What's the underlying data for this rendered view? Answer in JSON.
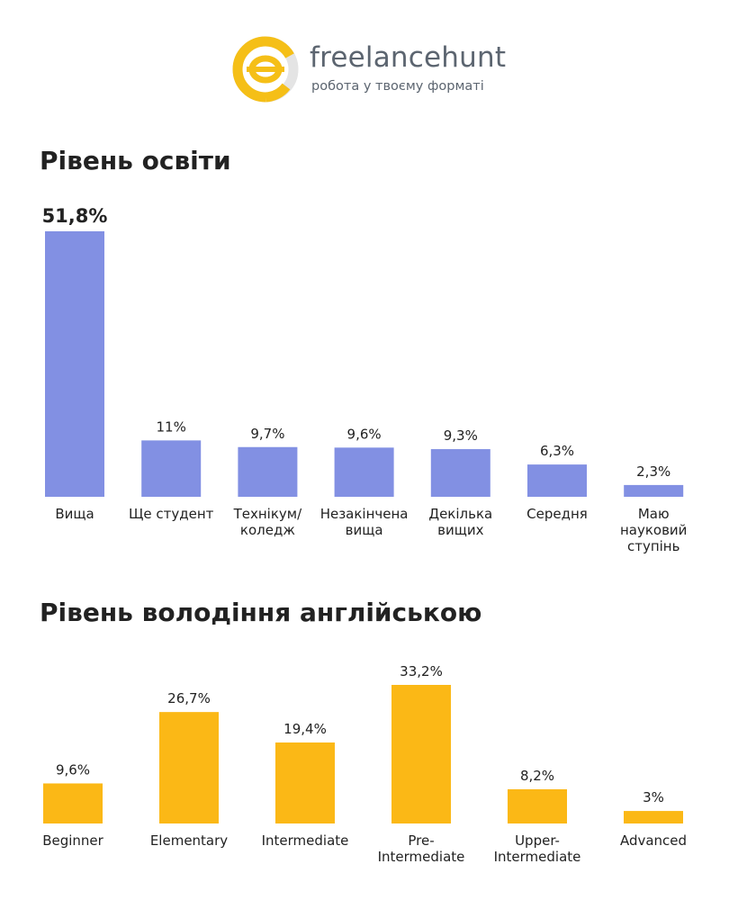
{
  "brand": {
    "name": "freelancehunt",
    "tagline": "робота у твоєму форматі",
    "colors": {
      "yellow": "#f5bf17",
      "gray": "#e4e4e4",
      "text": "#5c6570"
    }
  },
  "sections": {
    "education_title": "Рівень освіти",
    "english_title": "Рівень володіння англійською"
  },
  "chart_data": [
    {
      "type": "bar",
      "title": "Рівень освіти",
      "categories": [
        "Вища",
        "Ще студент",
        "Технікум/ коледж",
        "Незакінчена вища",
        "Декілька вищих",
        "Середня",
        "Маю науковий ступінь"
      ],
      "category_lines": [
        [
          "Вища"
        ],
        [
          "Ще студент"
        ],
        [
          "Технікум/",
          "коледж"
        ],
        [
          "Незакінчена",
          "вища"
        ],
        [
          "Декілька",
          "вищих"
        ],
        [
          "Середня"
        ],
        [
          "Маю",
          "науковий",
          "ступінь"
        ]
      ],
      "values": [
        51.8,
        11,
        9.7,
        9.6,
        9.3,
        6.3,
        2.3
      ],
      "value_labels": [
        "51,8%",
        "11%",
        "9,7%",
        "9,6%",
        "9,3%",
        "6,3%",
        "2,3%"
      ],
      "unit": "%",
      "color": "#8290e3",
      "ylim": [
        0,
        51.8
      ],
      "grid": false
    },
    {
      "type": "bar",
      "title": "Рівень володіння англійською",
      "categories": [
        "Beginner",
        "Elementary",
        "Intermediate",
        "Pre- Intermediate",
        "Upper- Intermediate",
        "Advanced"
      ],
      "category_lines": [
        [
          "Beginner"
        ],
        [
          "Elementary"
        ],
        [
          "Intermediate"
        ],
        [
          "Pre-",
          "Intermediate"
        ],
        [
          "Upper-",
          "Intermediate"
        ],
        [
          "Advanced"
        ]
      ],
      "values": [
        9.6,
        26.7,
        19.4,
        33.2,
        8.2,
        3
      ],
      "value_labels": [
        "9,6%",
        "26,7%",
        "19,4%",
        "33,2%",
        "8,2%",
        "3%"
      ],
      "unit": "%",
      "color": "#fbb816",
      "ylim": [
        0,
        33.2
      ],
      "grid": false
    }
  ]
}
